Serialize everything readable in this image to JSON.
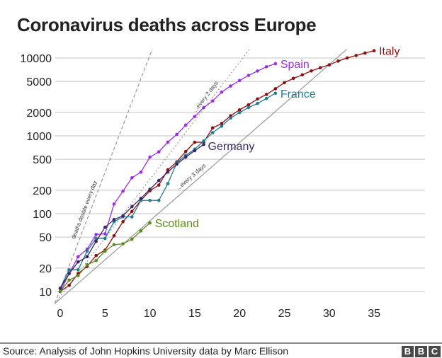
{
  "chart_data": {
    "type": "line",
    "title": "Coronavirus deaths across Europe",
    "xlabel": "",
    "ylabel": "",
    "yscale": "log",
    "xlim": [
      -0.6,
      40.5
    ],
    "ylim": [
      7,
      13000
    ],
    "x_ticks": [
      0,
      5,
      10,
      15,
      20,
      25,
      30,
      35
    ],
    "y_ticks": [
      10,
      20,
      50,
      100,
      200,
      500,
      1000,
      2000,
      5000,
      10000
    ],
    "y_tick_labels": [
      "10",
      "20",
      "50",
      "100",
      "200",
      "500",
      "1000",
      "2000",
      "5000",
      "10000"
    ],
    "grid": "horizontal",
    "reference_lines": [
      {
        "label": "deaths double every day",
        "doubling_days": 1,
        "style": "dashed"
      },
      {
        "label": "...every 2 days",
        "doubling_days": 2,
        "style": "dotted"
      },
      {
        "label": "...every 3 days",
        "doubling_days": 3,
        "style": "solid"
      }
    ],
    "series": [
      {
        "name": "Italy",
        "color": "#8e0e0e",
        "values": [
          10,
          12,
          17,
          21,
          29,
          34,
          52,
          79,
          107,
          148,
          197,
          233,
          366,
          463,
          631,
          827,
          827,
          1266,
          1441,
          1809,
          2158,
          2503,
          2978,
          3405,
          4032,
          4825,
          5476,
          6077,
          6820,
          7503,
          8165,
          9134,
          10023,
          10779,
          11591,
          12428
        ]
      },
      {
        "name": "Spain",
        "color": "#9a2ee6",
        "values": [
          10,
          17,
          28,
          35,
          54,
          55,
          133,
          195,
          289,
          342,
          533,
          623,
          830,
          1043,
          1375,
          1772,
          2311,
          2808,
          3647,
          4365,
          5138,
          5982,
          6803,
          7716,
          8464
        ]
      },
      {
        "name": "France",
        "color": "#1f7c93",
        "values": [
          11,
          19,
          19,
          33,
          48,
          48,
          79,
          91,
          91,
          148,
          148,
          148,
          243,
          450,
          562,
          674,
          860,
          1100,
          1331,
          1696,
          1995,
          2314,
          2606,
          3024,
          3523
        ]
      },
      {
        "name": "Germany",
        "color": "#3d2563",
        "values": [
          11,
          17,
          24,
          28,
          44,
          67,
          84,
          94,
          123,
          157,
          206,
          267,
          342,
          433,
          533,
          645,
          775
        ]
      },
      {
        "name": "Scotland",
        "color": "#5d8a1c",
        "values": [
          10,
          14,
          16,
          22,
          25,
          33,
          40,
          41,
          47,
          60,
          76
        ]
      }
    ]
  },
  "footer": {
    "source": "Source: Analysis of John Hopkins University data by Marc Ellison",
    "logo": [
      "B",
      "B",
      "C"
    ]
  }
}
